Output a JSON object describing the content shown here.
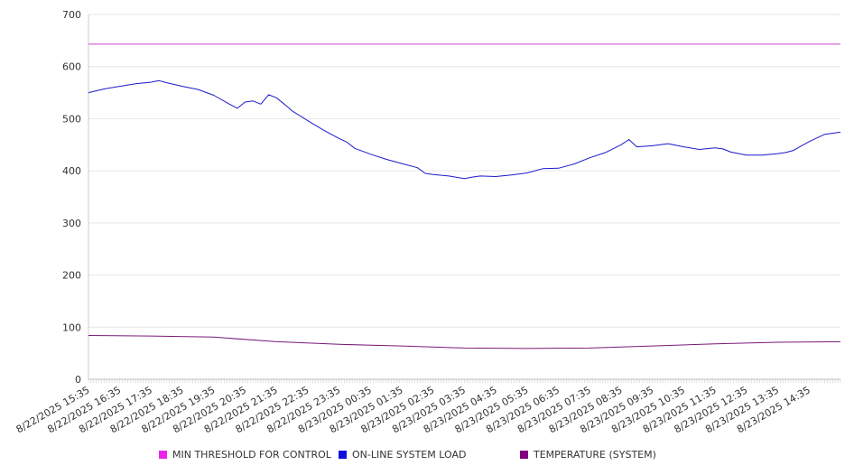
{
  "chart_data": {
    "type": "line",
    "title": "",
    "xlabel": "",
    "ylabel": "",
    "ylim": [
      0,
      700
    ],
    "yticks": [
      0,
      100,
      200,
      300,
      400,
      500,
      600,
      700
    ],
    "grid": true,
    "legend_position": "bottom",
    "x_tick_labels": [
      "8/22/2025 15:35",
      "8/22/2025 16:35",
      "8/22/2025 17:35",
      "8/22/2025 18:35",
      "8/22/2025 19:35",
      "8/22/2025 20:35",
      "8/22/2025 21:35",
      "8/22/2025 22:35",
      "8/22/2025 23:35",
      "8/23/2025 00:35",
      "8/23/2025 01:35",
      "8/23/2025 02:35",
      "8/23/2025 03:35",
      "8/23/2025 04:35",
      "8/23/2025 05:35",
      "8/23/2025 06:35",
      "8/23/2025 07:35",
      "8/23/2025 08:35",
      "8/23/2025 09:35",
      "8/23/2025 10:35",
      "8/23/2025 11:35",
      "8/23/2025 12:35",
      "8/23/2025 13:35",
      "8/23/2025 14:35"
    ],
    "x_range": [
      "8/22/2025 15:35",
      "8/23/2025 15:35"
    ],
    "series": [
      {
        "name": "MIN THRESHOLD FOR CONTROL",
        "color": "#cc44cc",
        "x": [
          "8/22/2025 15:35",
          "8/23/2025 15:35"
        ],
        "values": [
          643,
          643
        ]
      },
      {
        "name": "ON-LINE SYSTEM LOAD",
        "color": "#1a1acc",
        "x": [
          "8/22/2025 15:35",
          "8/22/2025 16:05",
          "8/22/2025 16:35",
          "8/22/2025 17:05",
          "8/22/2025 17:35",
          "8/22/2025 17:50",
          "8/22/2025 18:05",
          "8/22/2025 18:35",
          "8/22/2025 19:05",
          "8/22/2025 19:35",
          "8/22/2025 20:05",
          "8/22/2025 20:20",
          "8/22/2025 20:35",
          "8/22/2025 20:50",
          "8/22/2025 21:05",
          "8/22/2025 21:20",
          "8/22/2025 21:35",
          "8/22/2025 21:50",
          "8/22/2025 22:05",
          "8/22/2025 22:35",
          "8/22/2025 23:05",
          "8/22/2025 23:35",
          "8/22/2025 23:50",
          "8/23/2025 00:05",
          "8/23/2025 00:35",
          "8/23/2025 01:05",
          "8/23/2025 01:35",
          "8/23/2025 02:05",
          "8/23/2025 02:20",
          "8/23/2025 02:35",
          "8/23/2025 03:05",
          "8/23/2025 03:35",
          "8/23/2025 03:50",
          "8/23/2025 04:05",
          "8/23/2025 04:35",
          "8/23/2025 05:05",
          "8/23/2025 05:35",
          "8/23/2025 06:05",
          "8/23/2025 06:35",
          "8/23/2025 07:05",
          "8/23/2025 07:35",
          "8/23/2025 08:05",
          "8/23/2025 08:35",
          "8/23/2025 08:50",
          "8/23/2025 09:05",
          "8/23/2025 09:35",
          "8/23/2025 10:05",
          "8/23/2025 10:35",
          "8/23/2025 11:05",
          "8/23/2025 11:35",
          "8/23/2025 11:50",
          "8/23/2025 12:05",
          "8/23/2025 12:35",
          "8/23/2025 13:05",
          "8/23/2025 13:35",
          "8/23/2025 13:50",
          "8/23/2025 14:05",
          "8/23/2025 14:35",
          "8/23/2025 15:05",
          "8/23/2025 15:35"
        ],
        "values": [
          550,
          557,
          562,
          567,
          570,
          573,
          569,
          562,
          556,
          545,
          528,
          520,
          532,
          534,
          528,
          546,
          540,
          528,
          515,
          496,
          478,
          462,
          455,
          443,
          432,
          422,
          414,
          406,
          395,
          393,
          390,
          385,
          388,
          390,
          389,
          392,
          396,
          404,
          405,
          413,
          425,
          435,
          450,
          460,
          446,
          448,
          452,
          446,
          441,
          444,
          442,
          436,
          430,
          430,
          433,
          435,
          439,
          456,
          470,
          474
        ]
      },
      {
        "name": "TEMPERATURE (SYSTEM)",
        "color": "#7a1a7a",
        "x": [
          "8/22/2025 15:35",
          "8/22/2025 17:35",
          "8/22/2025 19:35",
          "8/22/2025 21:35",
          "8/22/2025 23:35",
          "8/23/2025 01:35",
          "8/23/2025 03:35",
          "8/23/2025 05:35",
          "8/23/2025 07:35",
          "8/23/2025 09:35",
          "8/23/2025 11:35",
          "8/23/2025 13:35",
          "8/23/2025 15:35"
        ],
        "values": [
          84,
          83,
          81,
          72,
          67,
          64,
          60,
          59,
          60,
          64,
          68,
          71,
          72
        ]
      }
    ]
  }
}
